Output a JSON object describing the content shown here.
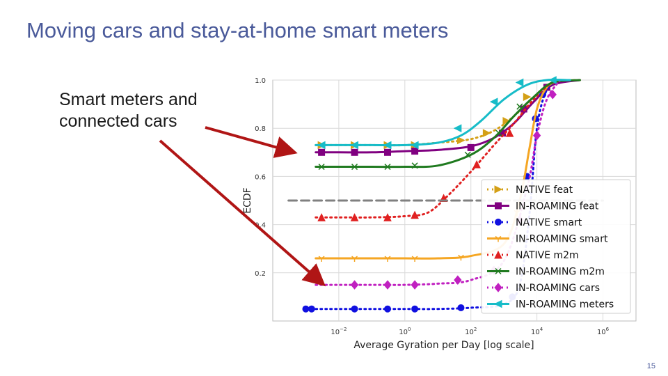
{
  "slide": {
    "title": "Moving cars and stay-at-home smart meters",
    "callout_line1": "Smart meters and",
    "callout_line2": "connected cars",
    "page_number": "15",
    "arrow_color": "#b01515"
  },
  "chart_data": {
    "type": "line",
    "title": "",
    "xlabel": "Average Gyration per Day [log scale]",
    "ylabel": "ECDF",
    "x_scale": "log",
    "xlim": [
      0.0001,
      10000000
    ],
    "ylim": [
      0,
      1.0
    ],
    "x_ticks": [
      {
        "value": 0.01,
        "base": "10",
        "exp": "−2"
      },
      {
        "value": 1,
        "base": "10",
        "exp": "0"
      },
      {
        "value": 100,
        "base": "10",
        "exp": "2"
      },
      {
        "value": 10000,
        "base": "10",
        "exp": "4"
      },
      {
        "value": 1000000,
        "base": "10",
        "exp": "6"
      }
    ],
    "y_ticks": [
      {
        "value": 0.2,
        "label": "0.2"
      },
      {
        "value": 0.4,
        "label": "0.4"
      },
      {
        "value": 0.6,
        "label": "0.6"
      },
      {
        "value": 0.8,
        "label": "0.8"
      },
      {
        "value": 1.0,
        "label": "1.0"
      }
    ],
    "grid": true,
    "legend_position": "right",
    "series": [
      {
        "name": "NATIVE feat",
        "color": "#d4a017",
        "style": "dotted",
        "marker": "triangle-right",
        "x": [
          0.002,
          0.01,
          0.1,
          1,
          10,
          100,
          500,
          2000,
          8000,
          30000,
          200000
        ],
        "y": [
          0.73,
          0.73,
          0.73,
          0.73,
          0.74,
          0.755,
          0.79,
          0.85,
          0.93,
          0.99,
          1.0
        ],
        "marker_x": [
          0.003,
          0.03,
          0.3,
          2,
          50,
          300,
          1200,
          5000
        ],
        "marker_y": [
          0.73,
          0.73,
          0.73,
          0.73,
          0.75,
          0.78,
          0.83,
          0.93
        ]
      },
      {
        "name": "IN-ROAMING feat",
        "color": "#800080",
        "style": "solid",
        "marker": "square",
        "x": [
          0.002,
          0.01,
          0.1,
          1,
          10,
          100,
          500,
          2000,
          8000,
          30000,
          200000
        ],
        "y": [
          0.7,
          0.7,
          0.7,
          0.705,
          0.71,
          0.725,
          0.76,
          0.82,
          0.91,
          0.98,
          1.0
        ],
        "marker_x": [
          0.003,
          0.03,
          0.3,
          2,
          100,
          900,
          4000,
          20000
        ],
        "marker_y": [
          0.7,
          0.7,
          0.7,
          0.705,
          0.72,
          0.78,
          0.88,
          0.97
        ]
      },
      {
        "name": "NATIVE smart",
        "color": "#1010e0",
        "style": "dotted",
        "marker": "circle",
        "x": [
          0.002,
          0.01,
          0.1,
          1,
          10,
          100,
          1000,
          3000,
          6000,
          10000,
          20000,
          50000
        ],
        "y": [
          0.05,
          0.05,
          0.05,
          0.05,
          0.05,
          0.055,
          0.07,
          0.15,
          0.45,
          0.8,
          0.96,
          1.0
        ],
        "marker_x": [
          0.001,
          0.0015,
          0.03,
          0.3,
          2,
          50,
          1800,
          5000,
          9000,
          15000
        ],
        "marker_y": [
          0.05,
          0.05,
          0.05,
          0.05,
          0.05,
          0.055,
          0.1,
          0.6,
          0.84,
          0.94
        ]
      },
      {
        "name": "IN-ROAMING smart",
        "color": "#f5a623",
        "style": "solid",
        "marker": "tri-down",
        "x": [
          0.002,
          0.01,
          0.1,
          1,
          10,
          100,
          1000,
          3000,
          6000,
          10000,
          20000,
          50000
        ],
        "y": [
          0.26,
          0.26,
          0.26,
          0.26,
          0.26,
          0.27,
          0.32,
          0.5,
          0.72,
          0.88,
          0.97,
          1.0
        ],
        "marker_x": [
          0.003,
          0.03,
          0.3,
          2,
          50,
          2500
        ],
        "marker_y": [
          0.26,
          0.26,
          0.26,
          0.26,
          0.265,
          0.45
        ]
      },
      {
        "name": "NATIVE m2m",
        "color": "#e02020",
        "style": "dotted",
        "marker": "triangle-up",
        "x": [
          0.002,
          0.01,
          0.1,
          1,
          5,
          20,
          100,
          500,
          2000,
          8000,
          30000,
          100000
        ],
        "y": [
          0.43,
          0.43,
          0.43,
          0.435,
          0.45,
          0.52,
          0.62,
          0.73,
          0.82,
          0.92,
          0.99,
          1.0
        ],
        "marker_x": [
          0.003,
          0.03,
          0.3,
          2,
          15,
          150,
          1500
        ],
        "marker_y": [
          0.43,
          0.43,
          0.43,
          0.44,
          0.51,
          0.65,
          0.78
        ]
      },
      {
        "name": "IN-ROAMING m2m",
        "color": "#1f7a1f",
        "style": "solid",
        "marker": "x",
        "x": [
          0.002,
          0.01,
          0.1,
          1,
          10,
          100,
          500,
          2000,
          8000,
          30000,
          200000
        ],
        "y": [
          0.64,
          0.64,
          0.64,
          0.64,
          0.645,
          0.69,
          0.76,
          0.85,
          0.93,
          0.99,
          1.0
        ],
        "marker_x": [
          0.003,
          0.03,
          0.3,
          2,
          80,
          700,
          3000
        ],
        "marker_y": [
          0.64,
          0.64,
          0.64,
          0.645,
          0.69,
          0.78,
          0.89
        ]
      },
      {
        "name": "IN-ROAMING cars",
        "color": "#c020c0",
        "style": "dotted",
        "marker": "diamond",
        "x": [
          0.002,
          0.01,
          0.1,
          1,
          10,
          100,
          1000,
          5000,
          10000,
          20000,
          50000
        ],
        "y": [
          0.15,
          0.15,
          0.15,
          0.15,
          0.155,
          0.17,
          0.25,
          0.55,
          0.77,
          0.92,
          1.0
        ],
        "marker_x": [
          0.03,
          0.3,
          2,
          40,
          500,
          3000,
          10000,
          30000
        ],
        "marker_y": [
          0.15,
          0.15,
          0.15,
          0.17,
          0.21,
          0.42,
          0.77,
          0.94
        ]
      },
      {
        "name": "IN-ROAMING meters",
        "color": "#17bcc8",
        "style": "solid",
        "marker": "triangle-left",
        "x": [
          0.002,
          0.01,
          0.1,
          1,
          10,
          50,
          200,
          1000,
          5000,
          20000,
          100000
        ],
        "y": [
          0.73,
          0.73,
          0.73,
          0.73,
          0.74,
          0.77,
          0.83,
          0.92,
          0.98,
          1.0,
          1.0
        ],
        "marker_x": [
          0.003,
          0.03,
          0.3,
          2,
          40,
          500,
          3000,
          30000
        ],
        "marker_y": [
          0.73,
          0.73,
          0.73,
          0.73,
          0.8,
          0.91,
          0.99,
          1.0
        ]
      },
      {
        "name": "",
        "color": "#808080",
        "style": "dashed",
        "marker": "none",
        "x": [
          0.0003,
          1000000
        ],
        "y": [
          0.5,
          0.5
        ],
        "marker_x": [],
        "marker_y": []
      }
    ]
  }
}
